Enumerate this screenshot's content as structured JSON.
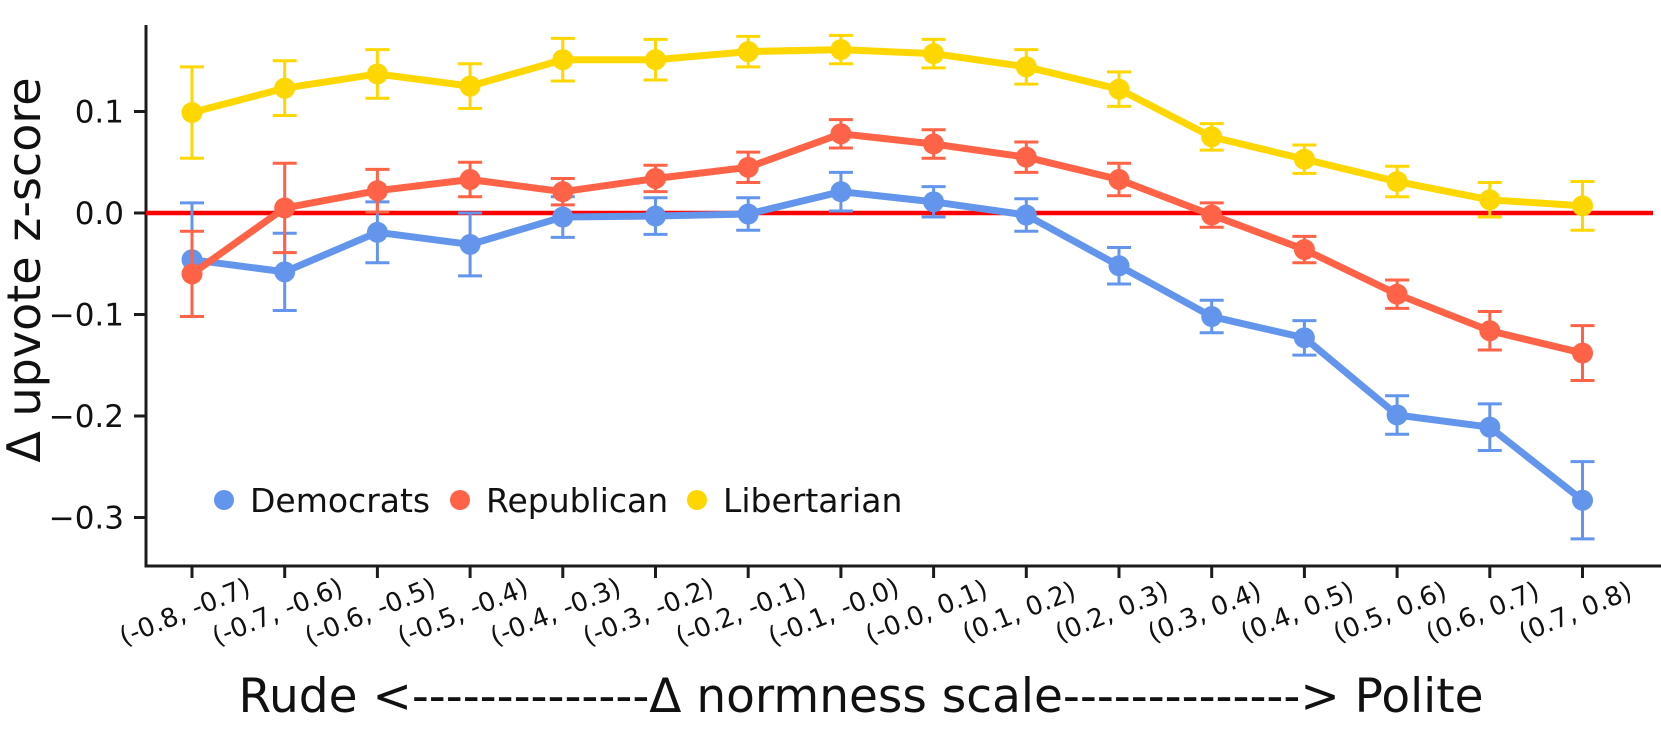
{
  "figure": {
    "background": "#ffffff",
    "axis_color": "#1c1c1c",
    "zero_line_color": "#ff0000"
  },
  "chart_data": {
    "type": "line",
    "title": "",
    "xlabel": "Rude <--------------Δ normness scale--------------> Polite",
    "ylabel": "Δ upvote z-score",
    "grid": false,
    "legend_position": "lower center inside",
    "zero_line": 0.0,
    "ylim": [
      -0.35,
      0.21
    ],
    "categories": [
      "(-0.8, -0.7)",
      "(-0.7, -0.6)",
      "(-0.6, -0.5)",
      "(-0.5, -0.4)",
      "(-0.4, -0.3)",
      "(-0.3, -0.2)",
      "(-0.2, -0.1)",
      "(-0.1, -0.0)",
      "(-0.0, 0.1)",
      "(0.1, 0.2)",
      "(0.2, 0.3)",
      "(0.3, 0.4)",
      "(0.4, 0.5)",
      "(0.5, 0.6)",
      "(0.6, 0.7)",
      "(0.7, 0.8)"
    ],
    "yticks": {
      "labels": [
        "0.1",
        "0.0",
        "−0.1",
        "−0.2",
        "−0.3"
      ],
      "values": [
        0.1,
        0.0,
        -0.1,
        -0.2,
        -0.3
      ]
    },
    "series": [
      {
        "name": "Democrats",
        "color": "#6495ED",
        "values": [
          -0.046,
          -0.058,
          -0.019,
          -0.031,
          -0.004,
          -0.003,
          -0.001,
          0.021,
          0.011,
          -0.002,
          -0.052,
          -0.102,
          -0.123,
          -0.199,
          -0.211,
          -0.283
        ],
        "errors": [
          0.056,
          0.038,
          0.03,
          0.031,
          0.02,
          0.018,
          0.016,
          0.019,
          0.015,
          0.016,
          0.018,
          0.016,
          0.017,
          0.019,
          0.023,
          0.038
        ]
      },
      {
        "name": "Republican",
        "color": "#FF6347",
        "values": [
          -0.06,
          0.005,
          0.022,
          0.033,
          0.021,
          0.034,
          0.045,
          0.078,
          0.068,
          0.055,
          0.033,
          -0.002,
          -0.036,
          -0.08,
          -0.116,
          -0.138
        ],
        "errors": [
          0.042,
          0.044,
          0.021,
          0.017,
          0.013,
          0.013,
          0.015,
          0.014,
          0.014,
          0.015,
          0.016,
          0.012,
          0.013,
          0.014,
          0.019,
          0.027
        ]
      },
      {
        "name": "Libertarian",
        "color": "#FFD700",
        "values": [
          0.099,
          0.123,
          0.137,
          0.125,
          0.151,
          0.151,
          0.159,
          0.161,
          0.157,
          0.144,
          0.122,
          0.075,
          0.053,
          0.031,
          0.013,
          0.007
        ],
        "errors": [
          0.045,
          0.027,
          0.024,
          0.022,
          0.021,
          0.02,
          0.015,
          0.014,
          0.014,
          0.017,
          0.017,
          0.013,
          0.014,
          0.015,
          0.017,
          0.024
        ]
      }
    ]
  }
}
